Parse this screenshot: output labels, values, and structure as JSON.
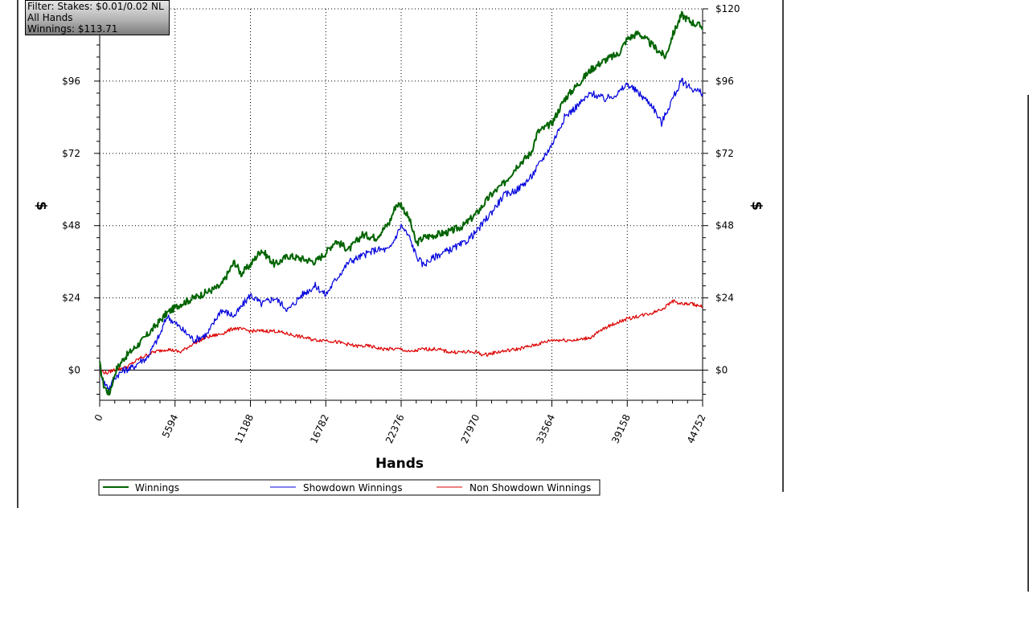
{
  "info_box": {
    "filter": "Filter: Stakes: $0.01/0.02 NL",
    "hands": "All Hands",
    "winnings": "Winnings: $113.71"
  },
  "colors": {
    "winnings": "#006400",
    "showdown": "#0000dd",
    "non_showdown": "#dd0000",
    "grid": "#000000"
  },
  "chart_data": {
    "type": "line",
    "title": "",
    "xlabel": "Hands",
    "ylabel_left": "$",
    "ylabel_right": "$",
    "xlim": [
      0,
      44752
    ],
    "ylim": [
      -10,
      120
    ],
    "x_ticks": [
      "0",
      "5594",
      "11188",
      "16782",
      "22376",
      "27970",
      "33564",
      "39158",
      "44752"
    ],
    "y_ticks_left": [
      "$96",
      "$72",
      "$48",
      "$24",
      "$0"
    ],
    "y_tick_values_left": [
      96,
      72,
      48,
      24,
      0
    ],
    "y_ticks_right": [
      "$120",
      "$96",
      "$72",
      "$48",
      "$24",
      "$0"
    ],
    "y_tick_values_right": [
      120,
      96,
      72,
      48,
      24,
      0
    ],
    "grid": true,
    "legend_position": "bottom-left",
    "series": [
      {
        "name": "Winnings",
        "color": "#006400",
        "x": [
          0,
          300,
          700,
          1200,
          1800,
          2500,
          3200,
          4000,
          5000,
          6000,
          7000,
          8000,
          9000,
          10000,
          10500,
          11188,
          12000,
          13000,
          14000,
          15000,
          16000,
          16782,
          17500,
          18500,
          19500,
          20500,
          21500,
          22000,
          22376,
          23000,
          23500,
          24000,
          25000,
          26000,
          27000,
          27970,
          29000,
          30000,
          31000,
          32000,
          32500,
          33564,
          34500,
          35500,
          36500,
          37500,
          38500,
          39158,
          40000,
          41000,
          42000,
          42500,
          43200,
          43800,
          44200,
          44752
        ],
        "y": [
          2,
          -5,
          -8,
          0,
          4,
          7,
          10,
          14,
          19,
          22,
          24,
          26,
          28,
          36,
          32,
          35,
          40,
          35,
          38,
          37,
          36,
          39,
          43,
          40,
          45,
          44,
          49,
          55,
          55,
          50,
          42,
          44,
          45,
          46,
          48,
          52,
          58,
          62,
          68,
          72,
          79,
          82,
          90,
          95,
          100,
          103,
          105,
          110,
          112,
          108,
          104,
          111,
          118,
          116,
          115,
          114
        ]
      },
      {
        "name": "Showdown Winnings",
        "color": "#0000dd",
        "x": [
          0,
          300,
          700,
          1200,
          1800,
          2500,
          3000,
          3500,
          4500,
          5000,
          6000,
          7000,
          8000,
          9000,
          10000,
          11188,
          12000,
          13000,
          14000,
          15000,
          16000,
          16782,
          17500,
          18500,
          19500,
          20500,
          21500,
          22376,
          23000,
          23500,
          24000,
          25000,
          26000,
          27000,
          27970,
          29000,
          30000,
          31000,
          32000,
          33564,
          34500,
          35500,
          36500,
          37500,
          38500,
          39158,
          40000,
          41000,
          41700,
          42500,
          43200,
          43800,
          44200,
          44752
        ],
        "y": [
          1,
          -4,
          -6,
          -2,
          0,
          1,
          3,
          4,
          12,
          18,
          14,
          10,
          12,
          20,
          18,
          25,
          22,
          24,
          20,
          25,
          28,
          25,
          30,
          36,
          38,
          40,
          40,
          48,
          44,
          38,
          35,
          38,
          40,
          42,
          46,
          52,
          58,
          60,
          64,
          75,
          84,
          88,
          92,
          90,
          92,
          95,
          92,
          88,
          82,
          90,
          96,
          94,
          93,
          92
        ]
      },
      {
        "name": "Non Showdown Winnings",
        "color": "#dd0000",
        "x": [
          0,
          500,
          1000,
          2000,
          3000,
          4000,
          5000,
          6000,
          7000,
          8000,
          9000,
          10000,
          11188,
          12000,
          13000,
          14000,
          15000,
          16000,
          16782,
          18000,
          19000,
          20000,
          21000,
          22376,
          23000,
          24000,
          25000,
          26000,
          27000,
          27970,
          28500,
          29500,
          31000,
          32000,
          33564,
          34500,
          35500,
          36500,
          37500,
          38500,
          39158,
          40000,
          41000,
          42000,
          42500,
          43200,
          44000,
          44752
        ],
        "y": [
          0,
          -1,
          0,
          1,
          4,
          6,
          7,
          6,
          9,
          11,
          12,
          14,
          13,
          13,
          13,
          12,
          11,
          10,
          10,
          9,
          8,
          8,
          7,
          7,
          6,
          7,
          7,
          6,
          6,
          6,
          5,
          6,
          7,
          8,
          10,
          10,
          10,
          11,
          14,
          16,
          17,
          18,
          19,
          21,
          23,
          22,
          22,
          21
        ]
      }
    ]
  }
}
